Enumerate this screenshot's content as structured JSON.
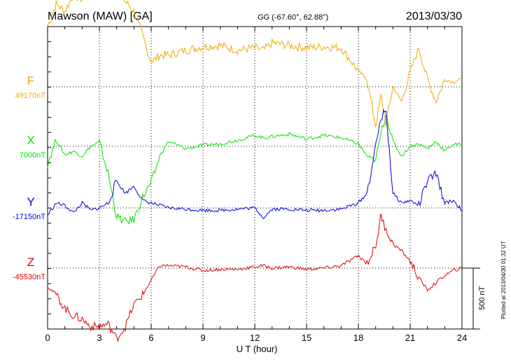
{
  "header": {
    "station": "Mawson (MAW)  [GA]",
    "coords": "GG (-67.60°,  62.88°)",
    "date": "2013/03/30"
  },
  "axis": {
    "xlabel": "U T (hour)",
    "scale_label": "500 nT",
    "plotted_note": "Plotted at 2013/04/30 01:32 UT"
  },
  "colors": {
    "F": "#f0a800",
    "X": "#00e000",
    "Y": "#0000e0",
    "Z": "#e00000"
  },
  "chart_data": {
    "type": "line",
    "title": "Mawson (MAW)  [GA]",
    "xlabel": "U T (hour)",
    "xlim": [
      0,
      24
    ],
    "x_ticks": [
      0,
      3,
      6,
      9,
      12,
      15,
      18,
      21,
      24
    ],
    "scale_bar_nT": 500,
    "x": [
      0,
      0.5,
      1,
      1.5,
      2,
      2.5,
      3,
      3.5,
      4,
      4.5,
      5,
      5.5,
      6,
      6.5,
      7,
      8,
      9,
      10,
      11,
      12,
      12.5,
      13,
      14,
      15,
      16,
      17,
      18,
      18.5,
      19,
      19.3,
      19.6,
      20,
      20.5,
      21,
      21.5,
      22,
      22.5,
      23,
      23.5,
      24
    ],
    "series": [
      {
        "name": "F",
        "baseline_label": "49170nT",
        "values": [
          500,
          680,
          620,
          750,
          720,
          760,
          780,
          820,
          800,
          700,
          620,
          420,
          200,
          260,
          260,
          300,
          330,
          340,
          300,
          320,
          300,
          360,
          340,
          320,
          330,
          320,
          130,
          60,
          -320,
          -80,
          -300,
          0,
          -120,
          120,
          320,
          60,
          -120,
          60,
          40,
          60
        ]
      },
      {
        "name": "X",
        "baseline_label": "7000nT",
        "values": [
          -140,
          50,
          -70,
          -40,
          -80,
          0,
          30,
          -220,
          -580,
          -620,
          -600,
          -420,
          -300,
          -80,
          40,
          -20,
          10,
          20,
          50,
          90,
          70,
          80,
          100,
          60,
          90,
          70,
          20,
          -80,
          -120,
          100,
          270,
          40,
          -80,
          0,
          20,
          -20,
          40,
          -40,
          20,
          10
        ]
      },
      {
        "name": "Y",
        "baseline_label": "-17150nT",
        "values": [
          -60,
          40,
          20,
          -40,
          40,
          -20,
          0,
          40,
          220,
          120,
          180,
          60,
          40,
          20,
          0,
          -10,
          -20,
          -20,
          -10,
          0,
          -80,
          -10,
          -10,
          -20,
          -20,
          -10,
          40,
          120,
          500,
          740,
          800,
          120,
          40,
          60,
          20,
          220,
          280,
          40,
          60,
          -20
        ]
      },
      {
        "name": "Z",
        "baseline_label": "-45530nT",
        "values": [
          -150,
          -220,
          -330,
          -390,
          -420,
          -480,
          -480,
          -460,
          -580,
          -480,
          -300,
          -220,
          -100,
          20,
          20,
          10,
          -20,
          -10,
          -10,
          10,
          20,
          0,
          10,
          -10,
          0,
          20,
          100,
          40,
          180,
          420,
          320,
          200,
          140,
          60,
          -80,
          -180,
          -120,
          -60,
          -20,
          0
        ]
      }
    ]
  }
}
